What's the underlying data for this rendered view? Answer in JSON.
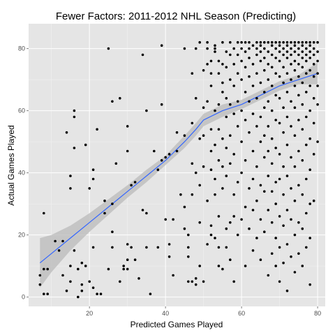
{
  "chart_data": {
    "type": "scatter",
    "title": "Fewer Factors: 2011-2012 NHL Season (Predicting)",
    "xlabel": "Predicted Games Played",
    "ylabel": "Actual Games Played",
    "xlim": [
      4,
      82
    ],
    "ylim": [
      -3,
      88
    ],
    "x_ticks": [
      20,
      40,
      60,
      80
    ],
    "y_ticks": [
      0,
      20,
      40,
      60,
      80
    ],
    "grid": true,
    "background_color": "#e5e5e5",
    "grid_color": "#ffffff",
    "point_color": "#000000",
    "smooth_color": "#3366ff",
    "band_color": "#bdbdbd",
    "smooth": {
      "x": [
        7,
        10,
        15,
        20,
        25,
        30,
        35,
        40,
        45,
        48,
        50,
        55,
        60,
        65,
        70,
        75,
        80
      ],
      "y": [
        11,
        14,
        19,
        24,
        29,
        34,
        39,
        44,
        50,
        54,
        57,
        60,
        62,
        65,
        68,
        70,
        72
      ],
      "lower": [
        3,
        8,
        15,
        21,
        26.5,
        32,
        37,
        42.5,
        48,
        52,
        55,
        58,
        60.5,
        63.5,
        66.5,
        68.5,
        68.5
      ],
      "upper": [
        19,
        20,
        23,
        27,
        31.5,
        36,
        41,
        45.5,
        52,
        56,
        59,
        62,
        63.5,
        66.5,
        69.5,
        71.5,
        75.5
      ]
    },
    "points": [
      [
        7,
        7
      ],
      [
        7,
        4
      ],
      [
        8,
        27
      ],
      [
        8,
        9
      ],
      [
        8,
        1
      ],
      [
        9,
        1
      ],
      [
        9,
        9
      ],
      [
        11,
        18
      ],
      [
        12,
        15
      ],
      [
        13,
        18
      ],
      [
        13,
        7
      ],
      [
        14,
        53
      ],
      [
        14,
        2
      ],
      [
        15,
        39
      ],
      [
        15,
        35
      ],
      [
        15,
        10
      ],
      [
        15,
        5
      ],
      [
        16,
        58
      ],
      [
        16,
        60
      ],
      [
        16,
        48
      ],
      [
        16,
        15
      ],
      [
        17,
        9
      ],
      [
        17,
        0
      ],
      [
        18,
        4
      ],
      [
        18,
        11
      ],
      [
        18,
        2
      ],
      [
        19,
        49
      ],
      [
        19,
        10
      ],
      [
        20,
        35
      ],
      [
        20,
        5
      ],
      [
        21,
        41
      ],
      [
        21,
        38
      ],
      [
        21,
        16
      ],
      [
        21,
        3
      ],
      [
        22,
        54
      ],
      [
        22,
        1
      ],
      [
        23,
        1
      ],
      [
        24,
        27
      ],
      [
        24,
        31
      ],
      [
        25,
        80
      ],
      [
        25,
        9
      ],
      [
        26,
        63
      ],
      [
        26,
        30
      ],
      [
        26,
        21
      ],
      [
        26,
        16
      ],
      [
        27,
        43
      ],
      [
        28,
        64
      ],
      [
        28,
        5
      ],
      [
        29,
        10
      ],
      [
        29,
        9
      ],
      [
        30,
        55
      ],
      [
        30,
        47
      ],
      [
        30,
        17
      ],
      [
        30,
        12
      ],
      [
        30,
        9
      ],
      [
        31,
        36
      ],
      [
        31,
        16
      ],
      [
        32,
        37
      ],
      [
        32,
        12
      ],
      [
        33,
        6
      ],
      [
        34,
        78
      ],
      [
        34,
        28
      ],
      [
        35,
        60
      ],
      [
        35,
        27
      ],
      [
        35,
        16
      ],
      [
        36,
        1
      ],
      [
        37,
        47
      ],
      [
        38,
        41
      ],
      [
        38,
        16
      ],
      [
        39,
        81
      ],
      [
        39,
        62
      ],
      [
        39,
        44
      ],
      [
        40,
        45
      ],
      [
        40,
        25
      ],
      [
        41,
        46
      ],
      [
        41,
        17
      ],
      [
        41,
        13
      ],
      [
        42,
        25
      ],
      [
        42,
        7
      ],
      [
        43,
        47
      ],
      [
        43,
        53
      ],
      [
        44,
        33
      ],
      [
        45,
        80
      ],
      [
        45,
        52
      ],
      [
        45,
        29
      ],
      [
        45,
        22
      ],
      [
        46,
        20
      ],
      [
        46,
        16
      ],
      [
        46,
        13
      ],
      [
        46,
        5
      ],
      [
        47,
        72
      ],
      [
        47,
        56
      ],
      [
        47,
        43
      ],
      [
        47,
        33
      ],
      [
        47,
        5
      ],
      [
        48,
        80
      ],
      [
        48,
        64
      ],
      [
        48,
        40
      ],
      [
        48,
        6
      ],
      [
        48,
        4
      ],
      [
        49,
        82
      ],
      [
        49,
        51
      ],
      [
        49,
        36
      ],
      [
        49,
        24
      ],
      [
        49,
        10
      ],
      [
        50,
        73
      ],
      [
        50,
        61
      ],
      [
        50,
        52
      ],
      [
        50,
        42
      ],
      [
        50,
        5
      ],
      [
        51,
        75
      ],
      [
        51,
        82
      ],
      [
        51,
        80
      ],
      [
        51,
        63
      ],
      [
        51,
        31
      ],
      [
        51,
        17
      ],
      [
        52,
        76
      ],
      [
        52,
        72
      ],
      [
        52,
        68
      ],
      [
        52,
        54
      ],
      [
        52,
        47
      ],
      [
        52,
        41
      ],
      [
        52,
        23
      ],
      [
        52,
        20
      ],
      [
        53,
        80
      ],
      [
        53,
        79
      ],
      [
        53,
        81
      ],
      [
        53,
        60
      ],
      [
        53,
        49
      ],
      [
        53,
        38
      ],
      [
        53,
        33
      ],
      [
        53,
        19
      ],
      [
        54,
        76
      ],
      [
        54,
        72
      ],
      [
        54,
        62
      ],
      [
        54,
        54
      ],
      [
        54,
        44
      ],
      [
        54,
        26
      ],
      [
        54,
        16
      ],
      [
        54,
        10
      ],
      [
        55,
        82
      ],
      [
        55,
        75
      ],
      [
        55,
        69
      ],
      [
        55,
        66
      ],
      [
        55,
        51
      ],
      [
        55,
        42
      ],
      [
        55,
        35
      ],
      [
        55,
        9
      ],
      [
        56,
        79
      ],
      [
        56,
        74
      ],
      [
        56,
        64
      ],
      [
        56,
        58
      ],
      [
        56,
        48
      ],
      [
        56,
        39
      ],
      [
        56,
        22
      ],
      [
        56,
        16
      ],
      [
        57,
        82
      ],
      [
        57,
        78
      ],
      [
        57,
        70
      ],
      [
        57,
        62
      ],
      [
        57,
        52
      ],
      [
        57,
        43
      ],
      [
        57,
        24
      ],
      [
        57,
        12
      ],
      [
        58,
        80
      ],
      [
        58,
        75
      ],
      [
        58,
        68
      ],
      [
        58,
        59
      ],
      [
        58,
        46
      ],
      [
        58,
        33
      ],
      [
        58,
        26
      ],
      [
        58,
        5
      ],
      [
        59,
        82
      ],
      [
        59,
        78
      ],
      [
        59,
        72
      ],
      [
        59,
        63
      ],
      [
        59,
        55
      ],
      [
        59,
        37
      ],
      [
        59,
        20
      ],
      [
        60,
        82
      ],
      [
        60,
        80
      ],
      [
        60,
        76
      ],
      [
        60,
        70
      ],
      [
        60,
        60
      ],
      [
        60,
        50
      ],
      [
        60,
        40
      ],
      [
        60,
        25
      ],
      [
        61,
        82
      ],
      [
        61,
        79
      ],
      [
        61,
        74
      ],
      [
        61,
        66
      ],
      [
        61,
        57
      ],
      [
        61,
        44
      ],
      [
        61,
        29
      ],
      [
        61,
        10
      ],
      [
        62,
        82
      ],
      [
        62,
        80
      ],
      [
        62,
        77
      ],
      [
        62,
        71
      ],
      [
        62,
        63
      ],
      [
        62,
        53
      ],
      [
        62,
        35
      ],
      [
        62,
        22
      ],
      [
        63,
        81
      ],
      [
        63,
        75
      ],
      [
        63,
        68
      ],
      [
        63,
        59
      ],
      [
        63,
        47
      ],
      [
        63,
        38
      ],
      [
        63,
        28
      ],
      [
        63,
        15
      ],
      [
        64,
        82
      ],
      [
        64,
        80
      ],
      [
        64,
        78
      ],
      [
        64,
        72
      ],
      [
        64,
        64
      ],
      [
        64,
        55
      ],
      [
        64,
        42
      ],
      [
        64,
        31
      ],
      [
        64,
        19
      ],
      [
        65,
        82
      ],
      [
        65,
        81
      ],
      [
        65,
        79
      ],
      [
        65,
        76
      ],
      [
        65,
        69
      ],
      [
        65,
        58
      ],
      [
        65,
        50
      ],
      [
        65,
        36
      ],
      [
        65,
        25
      ],
      [
        65,
        12
      ],
      [
        66,
        82
      ],
      [
        66,
        80
      ],
      [
        66,
        77
      ],
      [
        66,
        73
      ],
      [
        66,
        66
      ],
      [
        66,
        61
      ],
      [
        66,
        52
      ],
      [
        66,
        45
      ],
      [
        66,
        34
      ],
      [
        66,
        21
      ],
      [
        67,
        82
      ],
      [
        67,
        79
      ],
      [
        67,
        75
      ],
      [
        67,
        70
      ],
      [
        67,
        63
      ],
      [
        67,
        55
      ],
      [
        67,
        47
      ],
      [
        67,
        39
      ],
      [
        67,
        28
      ],
      [
        67,
        7
      ],
      [
        68,
        82
      ],
      [
        68,
        81
      ],
      [
        68,
        78
      ],
      [
        68,
        74
      ],
      [
        68,
        68
      ],
      [
        68,
        60
      ],
      [
        68,
        51
      ],
      [
        68,
        43
      ],
      [
        68,
        34
      ],
      [
        68,
        24
      ],
      [
        68,
        14
      ],
      [
        69,
        82
      ],
      [
        69,
        80
      ],
      [
        69,
        77
      ],
      [
        69,
        72
      ],
      [
        69,
        65
      ],
      [
        69,
        57
      ],
      [
        69,
        48
      ],
      [
        69,
        37
      ],
      [
        69,
        30
      ],
      [
        69,
        19
      ],
      [
        69,
        10
      ],
      [
        70,
        82
      ],
      [
        70,
        81
      ],
      [
        70,
        79
      ],
      [
        70,
        76
      ],
      [
        70,
        71
      ],
      [
        70,
        64
      ],
      [
        70,
        56
      ],
      [
        70,
        46
      ],
      [
        70,
        38
      ],
      [
        70,
        26
      ],
      [
        70,
        16
      ],
      [
        70,
        5
      ],
      [
        71,
        82
      ],
      [
        71,
        80
      ],
      [
        71,
        78
      ],
      [
        71,
        74
      ],
      [
        71,
        69
      ],
      [
        71,
        61
      ],
      [
        71,
        53
      ],
      [
        71,
        42
      ],
      [
        71,
        33
      ],
      [
        71,
        23
      ],
      [
        71,
        11
      ],
      [
        72,
        82
      ],
      [
        72,
        81
      ],
      [
        72,
        79
      ],
      [
        72,
        77
      ],
      [
        72,
        72
      ],
      [
        72,
        66
      ],
      [
        72,
        58
      ],
      [
        72,
        49
      ],
      [
        72,
        39
      ],
      [
        72,
        28
      ],
      [
        72,
        17
      ],
      [
        72,
        2
      ],
      [
        73,
        82
      ],
      [
        73,
        80
      ],
      [
        73,
        78
      ],
      [
        73,
        75
      ],
      [
        73,
        70
      ],
      [
        73,
        63
      ],
      [
        73,
        55
      ],
      [
        73,
        45
      ],
      [
        73,
        35
      ],
      [
        73,
        25
      ],
      [
        73,
        13
      ],
      [
        74,
        82
      ],
      [
        74,
        81
      ],
      [
        74,
        79
      ],
      [
        74,
        76
      ],
      [
        74,
        73
      ],
      [
        74,
        68
      ],
      [
        74,
        61
      ],
      [
        74,
        52
      ],
      [
        74,
        42
      ],
      [
        74,
        31
      ],
      [
        74,
        20
      ],
      [
        74,
        8
      ],
      [
        75,
        82
      ],
      [
        75,
        80
      ],
      [
        75,
        78
      ],
      [
        75,
        75
      ],
      [
        75,
        71
      ],
      [
        75,
        65
      ],
      [
        75,
        57
      ],
      [
        75,
        47
      ],
      [
        75,
        36
      ],
      [
        75,
        24
      ],
      [
        75,
        14
      ],
      [
        76,
        82
      ],
      [
        76,
        81
      ],
      [
        76,
        79
      ],
      [
        76,
        77
      ],
      [
        76,
        74
      ],
      [
        76,
        69
      ],
      [
        76,
        62
      ],
      [
        76,
        54
      ],
      [
        76,
        44
      ],
      [
        76,
        33
      ],
      [
        76,
        22
      ],
      [
        76,
        10
      ],
      [
        77,
        82
      ],
      [
        77,
        80
      ],
      [
        77,
        78
      ],
      [
        77,
        76
      ],
      [
        77,
        72
      ],
      [
        77,
        66
      ],
      [
        77,
        58
      ],
      [
        77,
        49
      ],
      [
        77,
        38
      ],
      [
        77,
        27
      ],
      [
        77,
        16
      ],
      [
        78,
        82
      ],
      [
        78,
        81
      ],
      [
        78,
        79
      ],
      [
        78,
        77
      ],
      [
        78,
        73
      ],
      [
        78,
        68
      ],
      [
        78,
        60
      ],
      [
        78,
        51
      ],
      [
        78,
        41
      ],
      [
        78,
        30
      ],
      [
        78,
        19
      ],
      [
        78,
        4
      ],
      [
        79,
        82
      ],
      [
        79,
        80
      ],
      [
        79,
        78
      ],
      [
        79,
        75
      ],
      [
        79,
        71
      ],
      [
        79,
        64
      ],
      [
        79,
        56
      ],
      [
        79,
        46
      ],
      [
        79,
        31
      ],
      [
        80,
        82
      ],
      [
        80,
        79
      ],
      [
        80,
        76
      ],
      [
        80,
        72
      ],
      [
        80,
        68
      ],
      [
        80,
        62
      ],
      [
        80,
        50
      ]
    ]
  }
}
